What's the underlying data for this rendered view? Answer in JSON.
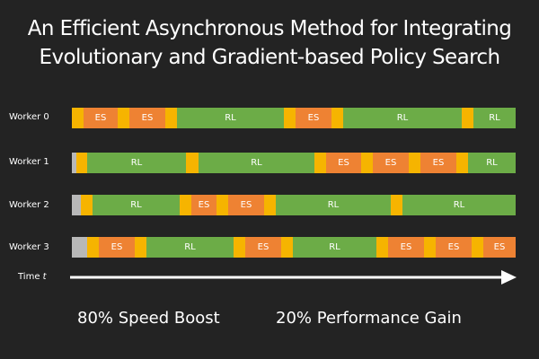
{
  "title": {
    "line1": "An Efficient Asynchronous Method for Integrating",
    "line2": "Evolutionary and Gradient-based Policy Search"
  },
  "colors": {
    "background": "#232323",
    "sync": "#f6b400",
    "es": "#ee8233",
    "rl": "#6cac47",
    "idle": "#b8b8b8"
  },
  "workers": [
    {
      "label": "Worker 0",
      "segments": [
        {
          "type": "sync",
          "start": 0,
          "end": 13,
          "label": ""
        },
        {
          "type": "es",
          "start": 13,
          "end": 51,
          "label": "ES"
        },
        {
          "type": "sync",
          "start": 51,
          "end": 64,
          "label": ""
        },
        {
          "type": "es",
          "start": 64,
          "end": 104,
          "label": "ES"
        },
        {
          "type": "sync",
          "start": 104,
          "end": 117,
          "label": ""
        },
        {
          "type": "rl",
          "start": 117,
          "end": 236,
          "label": "RL"
        },
        {
          "type": "sync",
          "start": 236,
          "end": 249,
          "label": ""
        },
        {
          "type": "es",
          "start": 249,
          "end": 289,
          "label": "ES"
        },
        {
          "type": "sync",
          "start": 289,
          "end": 302,
          "label": ""
        },
        {
          "type": "rl",
          "start": 302,
          "end": 434,
          "label": "RL"
        },
        {
          "type": "sync",
          "start": 434,
          "end": 447,
          "label": ""
        },
        {
          "type": "rl",
          "start": 447,
          "end": 494,
          "label": "RL"
        }
      ]
    },
    {
      "label": "Worker 1",
      "segments": [
        {
          "type": "idle",
          "start": 0,
          "end": 5,
          "label": ""
        },
        {
          "type": "sync",
          "start": 5,
          "end": 17,
          "label": ""
        },
        {
          "type": "rl",
          "start": 17,
          "end": 127,
          "label": "RL"
        },
        {
          "type": "sync",
          "start": 127,
          "end": 141,
          "label": ""
        },
        {
          "type": "rl",
          "start": 141,
          "end": 270,
          "label": "RL"
        },
        {
          "type": "sync",
          "start": 270,
          "end": 283,
          "label": ""
        },
        {
          "type": "es",
          "start": 283,
          "end": 322,
          "label": "ES"
        },
        {
          "type": "sync",
          "start": 322,
          "end": 335,
          "label": ""
        },
        {
          "type": "es",
          "start": 335,
          "end": 375,
          "label": "ES"
        },
        {
          "type": "sync",
          "start": 375,
          "end": 388,
          "label": ""
        },
        {
          "type": "es",
          "start": 388,
          "end": 428,
          "label": "ES"
        },
        {
          "type": "sync",
          "start": 428,
          "end": 441,
          "label": ""
        },
        {
          "type": "rl",
          "start": 441,
          "end": 494,
          "label": "RL"
        }
      ]
    },
    {
      "label": "Worker 2",
      "segments": [
        {
          "type": "idle",
          "start": 0,
          "end": 10,
          "label": ""
        },
        {
          "type": "sync",
          "start": 10,
          "end": 23,
          "label": ""
        },
        {
          "type": "rl",
          "start": 23,
          "end": 120,
          "label": "RL"
        },
        {
          "type": "sync",
          "start": 120,
          "end": 133,
          "label": ""
        },
        {
          "type": "es",
          "start": 133,
          "end": 161,
          "label": "ES"
        },
        {
          "type": "sync",
          "start": 161,
          "end": 174,
          "label": ""
        },
        {
          "type": "es",
          "start": 174,
          "end": 214,
          "label": "ES"
        },
        {
          "type": "sync",
          "start": 214,
          "end": 227,
          "label": ""
        },
        {
          "type": "rl",
          "start": 227,
          "end": 355,
          "label": "RL"
        },
        {
          "type": "sync",
          "start": 355,
          "end": 368,
          "label": ""
        },
        {
          "type": "rl",
          "start": 368,
          "end": 494,
          "label": "RL"
        }
      ]
    },
    {
      "label": "Worker 3",
      "segments": [
        {
          "type": "idle",
          "start": 0,
          "end": 17,
          "label": ""
        },
        {
          "type": "sync",
          "start": 17,
          "end": 30,
          "label": ""
        },
        {
          "type": "es",
          "start": 30,
          "end": 70,
          "label": "ES"
        },
        {
          "type": "sync",
          "start": 70,
          "end": 83,
          "label": ""
        },
        {
          "type": "rl",
          "start": 83,
          "end": 180,
          "label": "RL"
        },
        {
          "type": "sync",
          "start": 180,
          "end": 193,
          "label": ""
        },
        {
          "type": "es",
          "start": 193,
          "end": 233,
          "label": "ES"
        },
        {
          "type": "sync",
          "start": 233,
          "end": 246,
          "label": ""
        },
        {
          "type": "rl",
          "start": 246,
          "end": 339,
          "label": "RL"
        },
        {
          "type": "sync",
          "start": 339,
          "end": 352,
          "label": ""
        },
        {
          "type": "es",
          "start": 352,
          "end": 392,
          "label": "ES"
        },
        {
          "type": "sync",
          "start": 392,
          "end": 405,
          "label": ""
        },
        {
          "type": "es",
          "start": 405,
          "end": 445,
          "label": "ES"
        },
        {
          "type": "sync",
          "start": 445,
          "end": 458,
          "label": ""
        },
        {
          "type": "es",
          "start": 458,
          "end": 494,
          "label": "ES"
        }
      ]
    }
  ],
  "time_axis": {
    "label": "Time",
    "variable": "t"
  },
  "stats": {
    "speed": "80% Speed Boost",
    "performance": "20% Performance Gain"
  }
}
